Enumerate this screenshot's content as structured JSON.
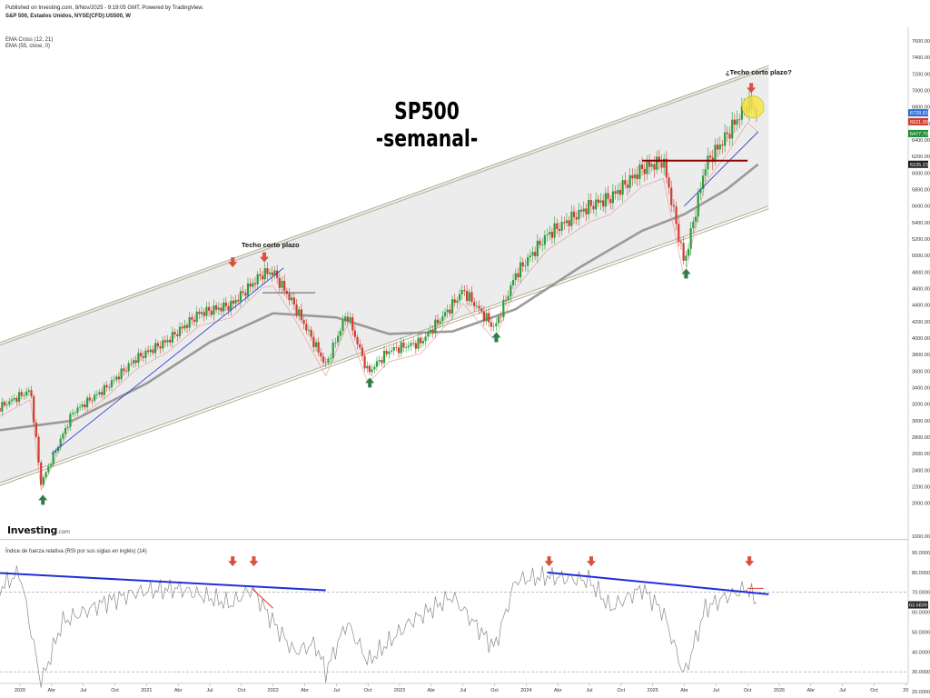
{
  "header": {
    "published": "Published on Investing.com, 8/Nov/2025 - 9:19:05 GMT, Powered by TradingView.",
    "symbol": "S&P 500, Estados Unidos, NYSE(CFD):US500, W"
  },
  "indicators": [
    "EMA Cross (12, 21)",
    "EMA (55, close, 0)"
  ],
  "title": {
    "line1": "SP500",
    "line2": "-semanal-"
  },
  "annotations": {
    "left": "Techo corto plazo",
    "right": "¿Techo corto plazo?"
  },
  "logo": {
    "main": "Investing",
    "suffix": ".com"
  },
  "rsi_title": "Índice de fuerza relativa (RSI por sus siglas en inglés) (14)",
  "colors": {
    "up": "#2e9e3c",
    "down": "#d23b2e",
    "channel_fill": "#ececec",
    "ema55": "#9a9a9a",
    "trend_blue": "#1f2fd8",
    "resistance": "#8b0000",
    "arrow_down": "#d9503f",
    "arrow_up": "#2e7d4a",
    "highlight": "#f3e84a"
  },
  "chart_data": [
    {
      "type": "candlestick",
      "title": "SP500 -semanal-",
      "ylim": [
        1600,
        7600
      ],
      "y_ticks": [
        1600,
        2000,
        2200,
        2400,
        2600,
        2800,
        3000,
        3200,
        3400,
        3600,
        3800,
        4000,
        4200,
        4400,
        4600,
        4800,
        5000,
        5200,
        5400,
        5600,
        5800,
        6000,
        6200,
        6400,
        6600,
        6800,
        7000,
        7200,
        7400,
        7600
      ],
      "x_ticks": [
        "2020",
        "Abr",
        "Jul",
        "Oct",
        "2021",
        "Abr",
        "Jul",
        "Oct",
        "2022",
        "Abr",
        "Jul",
        "Oct",
        "2023",
        "Abr",
        "Jul",
        "Oct",
        "2024",
        "Abr",
        "Jul",
        "Oct",
        "2025",
        "Abr",
        "Jul",
        "Oct",
        "2026",
        "Abr",
        "Jul",
        "Oct",
        "20"
      ],
      "price_badges": [
        {
          "label": "6728.81",
          "color": "#2f6fd6"
        },
        {
          "label": "6621.90",
          "color": "#d23b2e"
        },
        {
          "label": "6477.70",
          "color": "#1e8f3a"
        },
        {
          "label": "6105.23",
          "color": "#222222"
        }
      ],
      "series_path": [
        [
          "2019-09",
          3000
        ],
        [
          "2019-12",
          3230
        ],
        [
          "2020-02",
          3370
        ],
        [
          "2020-03",
          2240
        ],
        [
          "2020-06",
          3100
        ],
        [
          "2020-09",
          3380
        ],
        [
          "2020-12",
          3750
        ],
        [
          "2021-03",
          3970
        ],
        [
          "2021-06",
          4300
        ],
        [
          "2021-09",
          4400
        ],
        [
          "2021-12",
          4780
        ],
        [
          "2022-01",
          4800
        ],
        [
          "2022-03",
          4400
        ],
        [
          "2022-06",
          3670
        ],
        [
          "2022-08",
          4300
        ],
        [
          "2022-10",
          3580
        ],
        [
          "2022-12",
          3850
        ],
        [
          "2023-03",
          3950
        ],
        [
          "2023-06",
          4400
        ],
        [
          "2023-07",
          4580
        ],
        [
          "2023-10",
          4120
        ],
        [
          "2023-12",
          4770
        ],
        [
          "2024-03",
          5250
        ],
        [
          "2024-07",
          5600
        ],
        [
          "2024-09",
          5700
        ],
        [
          "2024-12",
          6050
        ],
        [
          "2025-02",
          6150
        ],
        [
          "2025-04",
          4900
        ],
        [
          "2025-06",
          6100
        ],
        [
          "2025-08",
          6450
        ],
        [
          "2025-10",
          6850
        ],
        [
          "2025-11",
          6728.81
        ]
      ],
      "ema55_path": [
        [
          "2019-09",
          2850
        ],
        [
          "2020-06",
          3000
        ],
        [
          "2021-01",
          3450
        ],
        [
          "2021-07",
          3950
        ],
        [
          "2022-01",
          4300
        ],
        [
          "2022-07",
          4250
        ],
        [
          "2022-12",
          4050
        ],
        [
          "2023-06",
          4080
        ],
        [
          "2023-12",
          4350
        ],
        [
          "2024-06",
          4850
        ],
        [
          "2024-12",
          5300
        ],
        [
          "2025-04",
          5500
        ],
        [
          "2025-08",
          5800
        ],
        [
          "2025-11",
          6105.23
        ]
      ],
      "channel": {
        "upper": [
          [
            "2019-09",
            3850
          ],
          [
            "2025-12",
            7300
          ]
        ],
        "lower": [
          [
            "2019-09",
            2150
          ],
          [
            "2025-12",
            5600
          ]
        ]
      },
      "resistance": [
        [
          "2024-12",
          6150
        ],
        [
          "2025-10",
          6150
        ]
      ],
      "support": [
        [
          "2021-12",
          4550
        ],
        [
          "2022-05",
          4550
        ]
      ]
    },
    {
      "type": "line",
      "name": "RSI (14)",
      "ylim": [
        20,
        90
      ],
      "y_ticks": [
        20,
        30,
        40,
        50,
        60,
        70,
        80,
        90
      ],
      "reference_lines": [
        70,
        30
      ],
      "current_value": "63.6839",
      "series_path": [
        [
          "2019-09",
          62
        ],
        [
          "2019-12",
          76
        ],
        [
          "2020-01",
          80
        ],
        [
          "2020-03",
          24
        ],
        [
          "2020-05",
          55
        ],
        [
          "2020-09",
          65
        ],
        [
          "2020-12",
          70
        ],
        [
          "2021-04",
          72
        ],
        [
          "2021-09",
          64
        ],
        [
          "2021-11",
          72
        ],
        [
          "2022-01",
          55
        ],
        [
          "2022-03",
          40
        ],
        [
          "2022-05",
          44
        ],
        [
          "2022-06",
          30
        ],
        [
          "2022-08",
          55
        ],
        [
          "2022-10",
          35
        ],
        [
          "2023-02",
          55
        ],
        [
          "2023-06",
          68
        ],
        [
          "2023-10",
          42
        ],
        [
          "2023-12",
          76
        ],
        [
          "2024-03",
          78
        ],
        [
          "2024-07",
          76
        ],
        [
          "2024-09",
          62
        ],
        [
          "2024-12",
          72
        ],
        [
          "2025-02",
          60
        ],
        [
          "2025-04",
          28
        ],
        [
          "2025-06",
          62
        ],
        [
          "2025-08",
          68
        ],
        [
          "2025-10",
          72
        ],
        [
          "2025-11",
          63.68
        ]
      ],
      "trend_lines": [
        [
          [
            "2019-10",
            80
          ],
          [
            "2022-06",
            71
          ]
        ],
        [
          [
            "2024-03",
            80
          ],
          [
            "2025-12",
            69
          ]
        ]
      ]
    }
  ]
}
